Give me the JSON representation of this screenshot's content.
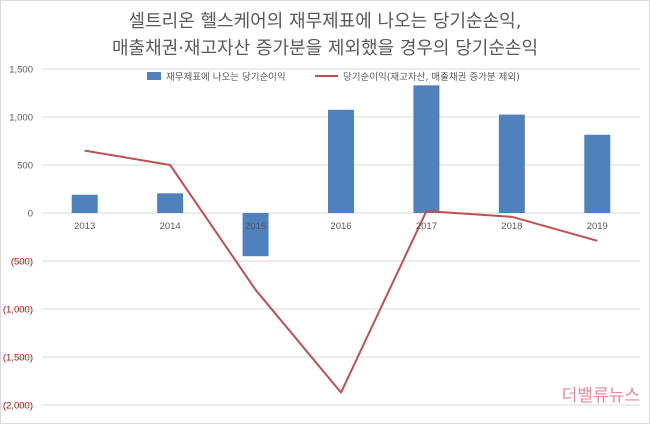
{
  "title_line1": "셀트리온 헬스케어의 재무제표에 나오는 당기순손익,",
  "title_line2": "매출채권·재고자산 증가분을 제외했을 경우의 당기순손익",
  "watermark": "더밸류뉴스",
  "colors": {
    "bar": "#4f81bd",
    "line": "#c0504d",
    "grid": "#d9d9d9",
    "negative_label": "#c00000"
  },
  "chart_data": {
    "type": "bar",
    "categories": [
      "2013",
      "2014",
      "2015",
      "2016",
      "2017",
      "2018",
      "2019"
    ],
    "series": [
      {
        "name": "재무제표에 나오는 당기순이익",
        "type": "bar",
        "values": [
          190,
          205,
          -450,
          1075,
          1330,
          1025,
          815
        ]
      },
      {
        "name": "당기순이익(재고자산, 매출채권 증가분 제외)",
        "type": "line",
        "values": [
          650,
          500,
          -800,
          -1870,
          20,
          -40,
          -290
        ]
      }
    ],
    "ylim": [
      -2000,
      1500
    ],
    "yticks": [
      1500,
      1000,
      500,
      0,
      -500,
      -1000,
      -1500,
      -2000
    ],
    "ytick_labels": [
      "1,500",
      "1,000",
      "500",
      "0",
      "(500)",
      "(1,000)",
      "(1,500)",
      "(2,000)"
    ],
    "grid": true,
    "legend_position": "top"
  }
}
